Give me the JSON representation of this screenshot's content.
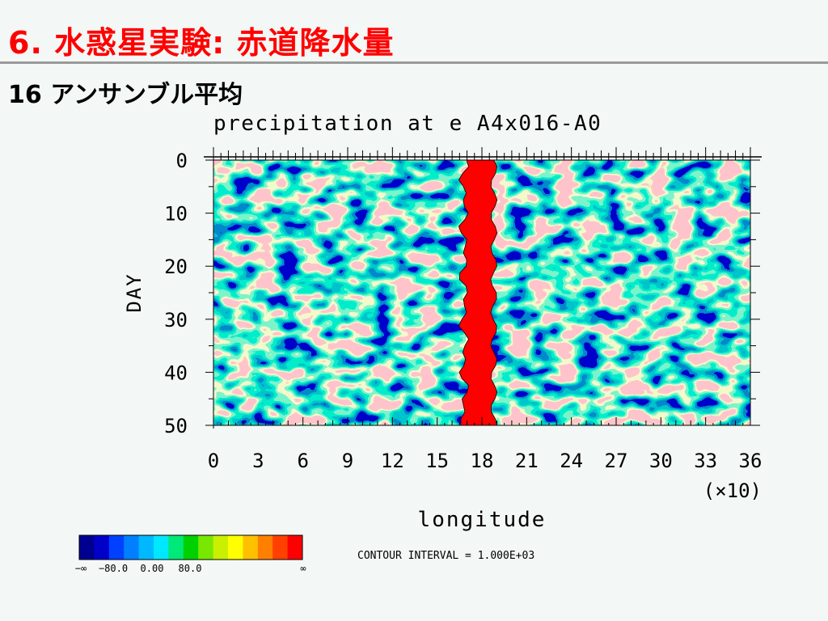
{
  "slide": {
    "title": "6. 水惑星実験: 赤道降水量",
    "subtitle": "16 アンサンブル平均"
  },
  "chart_data": {
    "type": "heatmap",
    "title": "precipitation at e A4x016-A0",
    "xlabel": "longitude",
    "ylabel": "DAY",
    "x_multiplier_label": "(×10)",
    "xlim": [
      0,
      36
    ],
    "ylim": [
      0,
      50
    ],
    "x_ticks": [
      "0",
      "3",
      "6",
      "9",
      "12",
      "15",
      "18",
      "21",
      "24",
      "27",
      "30",
      "33",
      "36"
    ],
    "y_ticks": [
      "0",
      "10",
      "20",
      "30",
      "40",
      "50"
    ],
    "features": [
      {
        "name": "equatorial precipitation band",
        "x_center": 17.8,
        "x_half_width": 1.0,
        "y_range": [
          0,
          50
        ],
        "level": "max"
      }
    ],
    "colorbar": {
      "colors": [
        "#000090",
        "#0000c8",
        "#0040ff",
        "#0080ff",
        "#00b8ff",
        "#00e8ff",
        "#00e878",
        "#00d000",
        "#78e800",
        "#c8f000",
        "#ffff00",
        "#ffc000",
        "#ff8000",
        "#ff4000",
        "#ff0000"
      ],
      "labels": [
        "−∞",
        "−80.0",
        "0.00",
        "80.0",
        "∞"
      ]
    },
    "contour_interval_text": "CONTOUR INTERVAL = 1.000E+03"
  }
}
